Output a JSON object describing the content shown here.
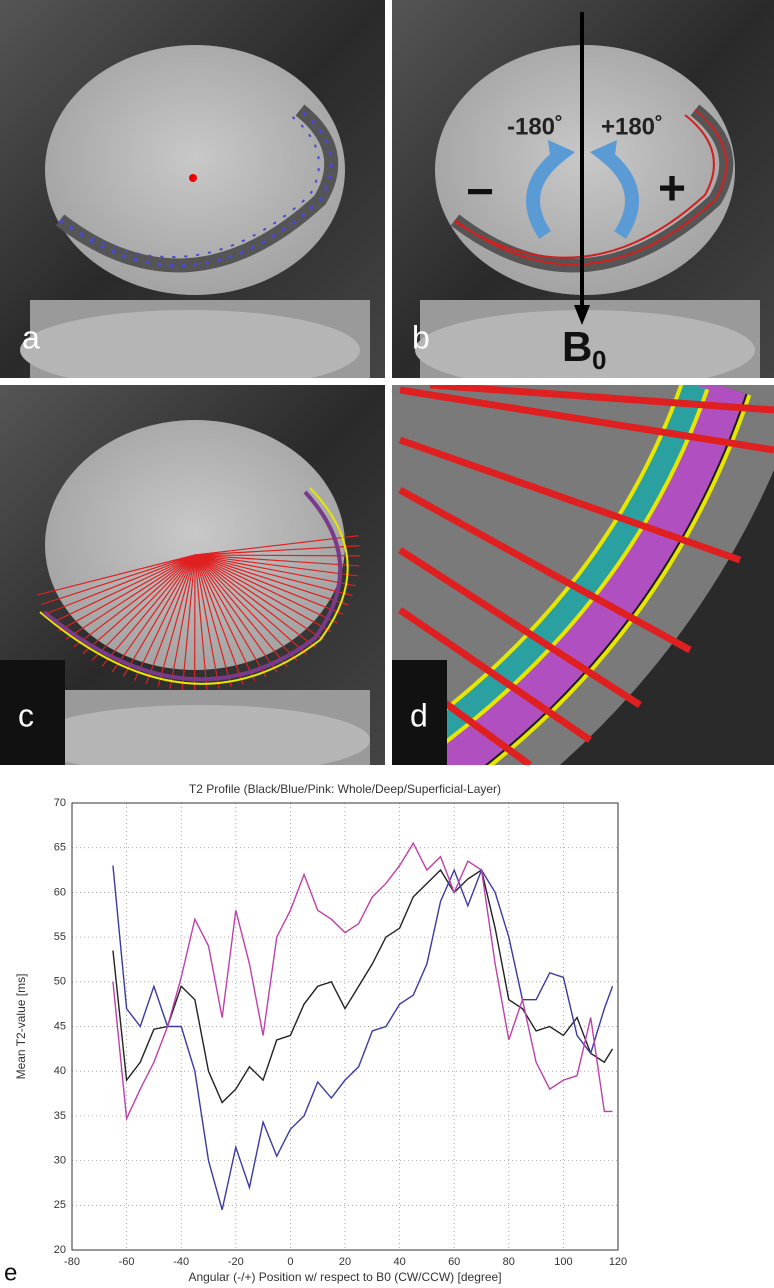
{
  "panels": {
    "a": {
      "label": "a"
    },
    "b": {
      "label": "b",
      "minus_angle": "-180˚",
      "plus_angle": "+180˚",
      "minus": "−",
      "plus": "+",
      "field": "B",
      "field_sub": "0"
    },
    "c": {
      "label": "c"
    },
    "d": {
      "label": "d"
    }
  },
  "chart_data": {
    "type": "line",
    "panel_label": "e",
    "title": "T2 Profile (Black/Blue/Pink: Whole/Deep/Superficial-Layer)",
    "x_label": "Angular (-/+) Position w/ respect to B0 (CW/CCW) [degree]",
    "y_label": "Mean T2-value [ms]",
    "x": [
      -65,
      -60,
      -55,
      -50,
      -45,
      -40,
      -35,
      -30,
      -25,
      -20,
      -15,
      -10,
      -5,
      0,
      5,
      10,
      15,
      20,
      25,
      30,
      35,
      40,
      45,
      50,
      55,
      60,
      65,
      70,
      75,
      80,
      85,
      90,
      95,
      100,
      105,
      110,
      115,
      118
    ],
    "series": [
      {
        "color": "#222222",
        "values": [
          53.5,
          39,
          41,
          44.7,
          45,
          49.5,
          48,
          40,
          36.5,
          38,
          40.5,
          39,
          43.5,
          44,
          47.5,
          49.5,
          50,
          47,
          49.5,
          52,
          55,
          56,
          59.5,
          61,
          62.5,
          60,
          61.5,
          62.5,
          56,
          48,
          47,
          44.5,
          45,
          44,
          46,
          42,
          41,
          42.5
        ]
      },
      {
        "color": "#3a3aa6",
        "values": [
          63,
          47,
          45,
          49.5,
          45,
          45,
          40,
          30,
          24.5,
          31.5,
          27,
          34.3,
          30.5,
          33.5,
          35,
          38.8,
          37,
          39,
          40.5,
          44.5,
          45,
          47.5,
          48.5,
          52,
          59,
          62.5,
          58.5,
          62.5,
          60,
          55,
          48,
          48,
          51,
          50.5,
          44,
          42,
          47,
          49.5
        ]
      },
      {
        "color": "#c040a8",
        "values": [
          50,
          34.7,
          38,
          41,
          45,
          50.5,
          57,
          54,
          46,
          58,
          52,
          44,
          55,
          58,
          62,
          58,
          57,
          55.5,
          56.5,
          59.5,
          61,
          63,
          65.5,
          62.5,
          64,
          60,
          63.5,
          62.5,
          52,
          43.5,
          48,
          41,
          38,
          39,
          39.5,
          46,
          35.5,
          35.5
        ]
      }
    ],
    "xlim": [
      -80,
      120
    ],
    "xticks": [
      -80,
      -60,
      -40,
      -20,
      0,
      20,
      40,
      60,
      80,
      100,
      120
    ],
    "ylim": [
      20,
      70
    ],
    "yticks": [
      20,
      25,
      30,
      35,
      40,
      45,
      50,
      55,
      60,
      65,
      70
    ],
    "grid": true
  }
}
